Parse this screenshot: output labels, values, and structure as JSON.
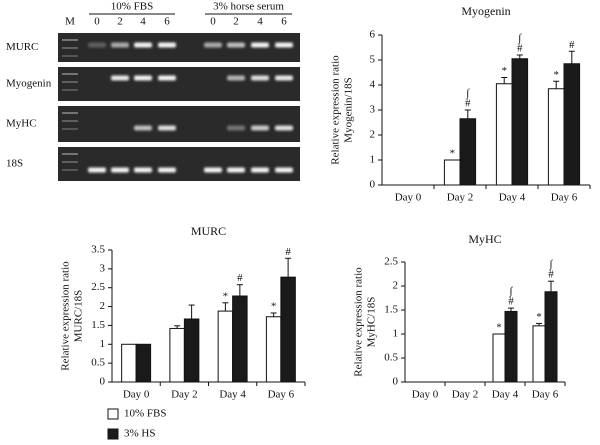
{
  "gel": {
    "ladder": "M",
    "groups": [
      {
        "label": "10% FBS",
        "lanes": [
          0,
          2,
          4,
          6
        ]
      },
      {
        "label": "3% horse serum",
        "lanes": [
          0,
          2,
          4,
          6
        ]
      }
    ],
    "rows": [
      "MURC",
      "Myogenin",
      "MyHC",
      "18S"
    ]
  },
  "chart_data": [
    {
      "type": "bar",
      "title": "Myogenin",
      "ylabel": [
        "Relative expression ratio",
        "Myogenin/18S"
      ],
      "categories": [
        "Day 0",
        "Day 2",
        "Day 4",
        "Day 6"
      ],
      "series": [
        {
          "color": "#ffffff",
          "values": [
            0,
            1.0,
            4.05,
            3.85
          ],
          "errors": [
            null,
            null,
            0.25,
            0.3
          ],
          "marks": [
            null,
            [
              "*"
            ],
            [
              "*"
            ],
            [
              "*"
            ]
          ]
        },
        {
          "color": "#1a1a1a",
          "values": [
            0,
            2.65,
            5.05,
            4.85
          ],
          "errors": [
            null,
            0.35,
            0.15,
            0.5
          ],
          "marks": [
            null,
            [
              "#",
              "∫"
            ],
            [
              "#",
              "∫"
            ],
            [
              "#"
            ]
          ]
        }
      ],
      "ylim": [
        0,
        6
      ],
      "yticks": [
        0,
        1,
        2,
        3,
        4,
        5,
        6
      ]
    },
    {
      "type": "bar",
      "title": "MURC",
      "ylabel": [
        "Relative expression ratio",
        "MURC/18S"
      ],
      "categories": [
        "Day 0",
        "Day 2",
        "Day 4",
        "Day 6"
      ],
      "series": [
        {
          "name": "10% FBS",
          "color": "#ffffff",
          "values": [
            1,
            1.42,
            1.88,
            1.73
          ],
          "errors": [
            null,
            0.07,
            0.22,
            0.1
          ],
          "marks": [
            null,
            null,
            [
              "*"
            ],
            [
              "*"
            ]
          ]
        },
        {
          "name": "3% HS",
          "color": "#1a1a1a",
          "values": [
            1,
            1.67,
            2.28,
            2.78
          ],
          "errors": [
            null,
            0.37,
            0.3,
            0.5
          ],
          "marks": [
            null,
            null,
            [
              "#"
            ],
            [
              "#"
            ]
          ]
        }
      ],
      "ylim": [
        0,
        3.5
      ],
      "yticks": [
        0,
        0.5,
        1,
        1.5,
        2,
        2.5,
        3,
        3.5
      ],
      "legend": "below-left"
    },
    {
      "type": "bar",
      "title": "MyHC",
      "ylabel": [
        "Relative expression ratio",
        "MyHC/18S"
      ],
      "categories": [
        "Day 0",
        "Day 2",
        "Day 4",
        "Day 6"
      ],
      "series": [
        {
          "color": "#ffffff",
          "values": [
            0,
            0,
            1.0,
            1.17
          ],
          "errors": [
            null,
            null,
            null,
            0.05
          ],
          "marks": [
            null,
            null,
            [
              "*"
            ],
            [
              "*"
            ]
          ]
        },
        {
          "color": "#1a1a1a",
          "values": [
            0,
            0,
            1.47,
            1.88
          ],
          "errors": [
            null,
            null,
            0.07,
            0.22
          ],
          "marks": [
            null,
            null,
            [
              "#",
              "∫"
            ],
            [
              "#",
              "∫"
            ]
          ]
        }
      ],
      "ylim": [
        0,
        2.5
      ],
      "yticks": [
        0,
        0.5,
        1,
        1.5,
        2,
        2.5
      ]
    }
  ]
}
